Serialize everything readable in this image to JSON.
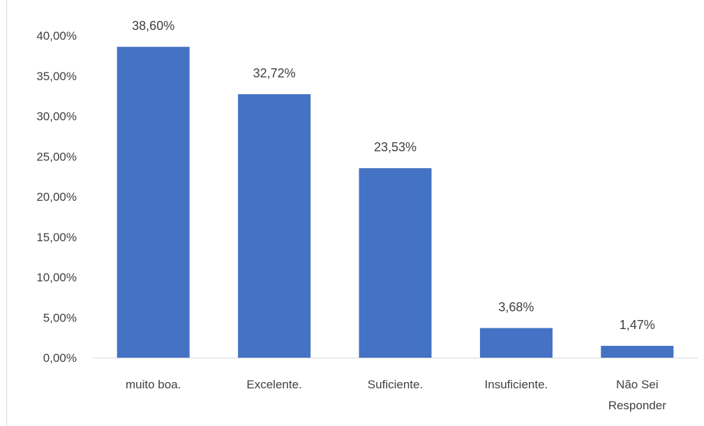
{
  "chart_data": {
    "type": "bar",
    "title": "",
    "xlabel": "",
    "ylabel": "",
    "categories": [
      "muito boa.",
      "Excelente.",
      "Suficiente.",
      "Insuficiente.",
      "Não Sei Responder"
    ],
    "category_lines": [
      [
        "muito boa."
      ],
      [
        "Excelente."
      ],
      [
        "Suficiente."
      ],
      [
        "Insuficiente."
      ],
      [
        "Não Sei",
        "Responder"
      ]
    ],
    "values": [
      38.6,
      32.72,
      23.53,
      3.68,
      1.47
    ],
    "data_labels": [
      "38,60%",
      "32,72%",
      "23,53%",
      "3,68%",
      "1,47%"
    ],
    "ylim": [
      0,
      40
    ],
    "yticks": [
      0,
      5,
      10,
      15,
      20,
      25,
      30,
      35,
      40
    ],
    "ytick_labels": [
      "0,00%",
      "5,00%",
      "10,00%",
      "15,00%",
      "20,00%",
      "25,00%",
      "30,00%",
      "35,00%",
      "40,00%"
    ],
    "grid": false,
    "legend": "none",
    "colors": {
      "bar": "#4472C4",
      "axis": "#d9d9d9",
      "text": "#404040"
    }
  }
}
